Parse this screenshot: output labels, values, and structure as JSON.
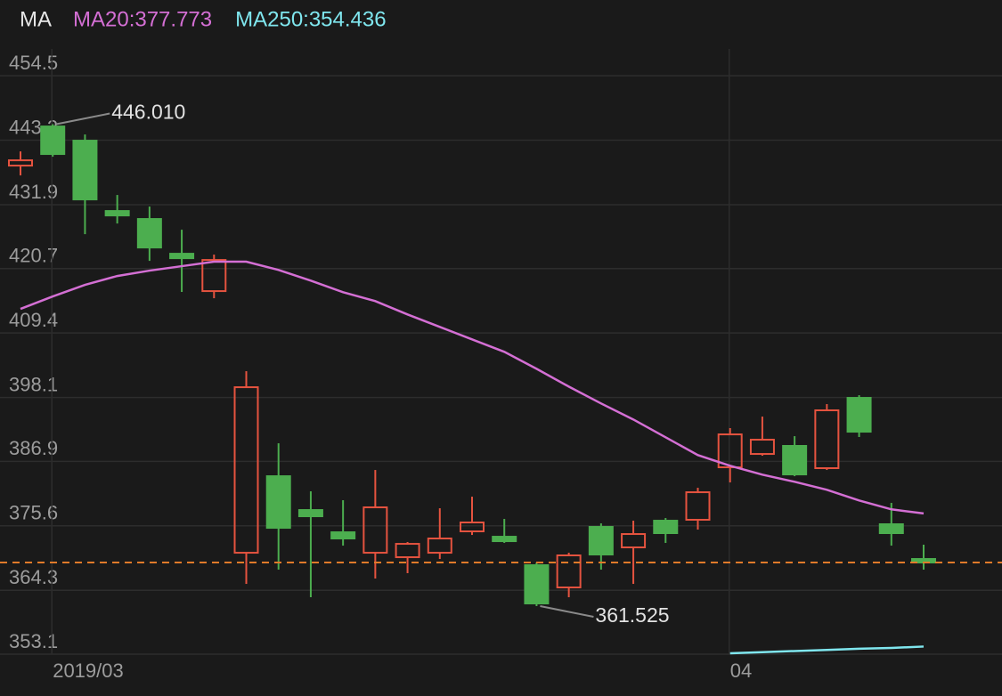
{
  "chart_data": {
    "type": "candlestick",
    "indicator": "MA",
    "categories": [
      null,
      "2019/03",
      null,
      null,
      null,
      null,
      null,
      null,
      null,
      null,
      null,
      null,
      null,
      null,
      null,
      null,
      null,
      null,
      null,
      null,
      null,
      null,
      "04",
      null,
      null,
      null,
      null,
      null,
      null
    ],
    "open": [
      438.75,
      445.61,
      443.12,
      430.79,
      429.39,
      423.3,
      416.75,
      370.88,
      384.3,
      378.37,
      374.47,
      370.88,
      370.1,
      370.88,
      374.63,
      373.69,
      368.7,
      364.8,
      375.41,
      371.82,
      376.5,
      376.66,
      385.86,
      388.2,
      389.61,
      385.71,
      398.03,
      375.88,
      369.79
    ],
    "high": [
      441.24,
      446.01,
      444.21,
      433.6,
      431.57,
      427.51,
      423.15,
      402.71,
      390.07,
      381.65,
      380.09,
      385.39,
      372.76,
      378.68,
      380.71,
      376.81,
      369.17,
      370.88,
      376.03,
      376.5,
      376.97,
      382.27,
      392.73,
      394.75,
      391.32,
      396.94,
      398.5,
      379.62,
      372.29
    ],
    "low": [
      437.03,
      440.31,
      426.73,
      428.6,
      422.05,
      416.6,
      415.5,
      365.42,
      367.92,
      363.08,
      372.13,
      366.36,
      367.3,
      369.79,
      374.0,
      372.6,
      361.525,
      363.08,
      367.92,
      365.42,
      372.6,
      374.94,
      383.21,
      387.89,
      384.3,
      385.39,
      391.17,
      372.13,
      367.92
    ],
    "close": [
      439.68,
      440.78,
      432.82,
      430.01,
      424.39,
      422.52,
      422.21,
      399.9,
      375.25,
      377.28,
      373.38,
      378.84,
      372.44,
      373.38,
      376.19,
      372.91,
      361.99,
      370.42,
      370.57,
      374.16,
      374.32,
      381.49,
      391.63,
      390.7,
      384.61,
      395.85,
      392.1,
      374.32,
      369.17
    ],
    "up_color": "#e5533f",
    "down_color": "#4cae4f",
    "series": [
      {
        "name": "MA20:377.773",
        "color": "#d46fd4",
        "values": [
          413.63,
          415.81,
          417.84,
          419.4,
          420.34,
          421.12,
          421.9,
          421.9,
          420.45,
          418.58,
          416.55,
          414.99,
          412.65,
          410.47,
          408.28,
          406.1,
          403.13,
          400.01,
          397.05,
          394.24,
          391.12,
          388.0,
          386.13,
          384.57,
          383.32,
          381.92,
          380.05,
          378.49,
          377.773
        ]
      },
      {
        "name": "MA250:354.436",
        "color": "#7fe6ee",
        "values": [
          null,
          null,
          null,
          null,
          null,
          null,
          null,
          null,
          null,
          null,
          null,
          null,
          null,
          null,
          null,
          null,
          null,
          null,
          null,
          null,
          null,
          null,
          353.25,
          353.45,
          353.65,
          353.85,
          354.05,
          354.2,
          354.436
        ]
      }
    ],
    "annotations": [
      {
        "label": "446.010",
        "value": 446.01
      },
      {
        "label": "361.525",
        "value": 361.525
      }
    ],
    "last_price_line": {
      "color": "#e07a2a",
      "dashed": true
    },
    "ylim": [
      353.1,
      459.2
    ],
    "yticks": [
      454.5,
      443.2,
      431.9,
      420.7,
      409.4,
      398.1,
      386.9,
      375.6,
      364.3,
      353.1
    ],
    "grid": true
  }
}
